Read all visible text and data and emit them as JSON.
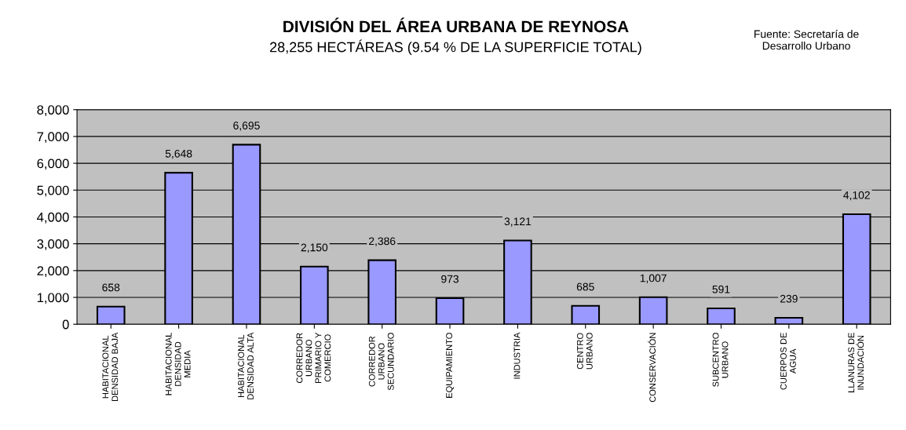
{
  "chart_data": {
    "type": "bar",
    "title": "DIVISIÓN DEL ÁREA URBANA DE REYNOSA",
    "subtitle": "28,255 HECTÁREAS (9.54 % DE LA SUPERFICIE TOTAL)",
    "annotations": [
      "Fuente: Secretaría de\nDesarrollo Urbano"
    ],
    "categories": [
      "HABITACIONAL\nDENSIDAD BAJA",
      "HABITACIONAL\nDENSIDAD\nMEDIA",
      "HABITACIONAL\nDENSIDAD ALTA",
      "CORREDOR\nURBANO\nPRIMARIO Y\nCOMERCIO",
      "CORREDOR\nURBANO\nSECUNDARIO",
      "EQUIPAMIENTO",
      "INDUSTRIA",
      "CENTRO\nURBANO",
      "CONSERVACIÓN",
      "SUBCENTRO\nURBANO",
      "CUERPOS DE\nAGUA",
      "LLANURAS DE\nINUNDACIÓN"
    ],
    "values": [
      658,
      5648,
      6695,
      2150,
      2386,
      973,
      3121,
      685,
      1007,
      591,
      239,
      4102
    ],
    "value_labels": [
      "658",
      "5,648",
      "6,695",
      "2,150",
      "2,386",
      "973",
      "3,121",
      "685",
      "1,007",
      "591",
      "239",
      "4,102"
    ],
    "color": "#9999ff",
    "ylim": [
      0,
      8000
    ],
    "yticks": [
      {
        "value": 0,
        "label": "0"
      },
      {
        "value": 1000,
        "label": "1,000"
      },
      {
        "value": 2000,
        "label": "2,000"
      },
      {
        "value": 3000,
        "label": "3,000"
      },
      {
        "value": 4000,
        "label": "4,000"
      },
      {
        "value": 5000,
        "label": "5,000"
      },
      {
        "value": 6000,
        "label": "6,000"
      },
      {
        "value": 7000,
        "label": "7,000"
      },
      {
        "value": 8000,
        "label": "8,000"
      }
    ],
    "grid": "y"
  }
}
